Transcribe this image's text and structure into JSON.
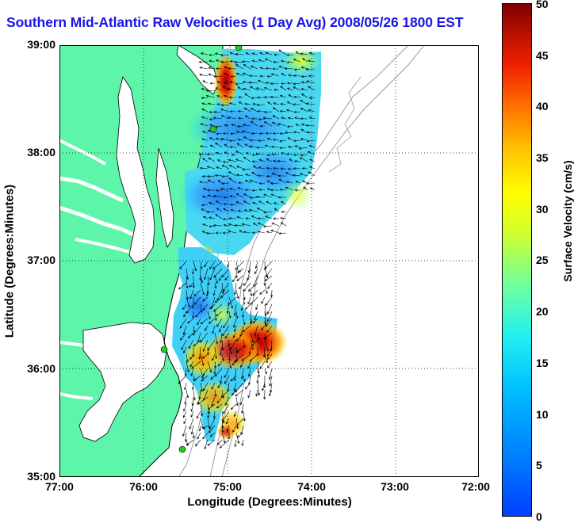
{
  "figure": {
    "title": "Southern Mid-Atlantic Raw Velocities (1 Day Avg) 2008/05/26 1800 EST",
    "xlabel": "Longitude (Degrees:Minutes)",
    "ylabel": "Latitude (Degrees:Minutes)",
    "x_ticks": [
      "77:00",
      "76:00",
      "75:00",
      "74:00",
      "73:00",
      "72:00"
    ],
    "y_ticks": [
      "39:00",
      "38:00",
      "37:00",
      "36:00",
      "35:00"
    ],
    "colorbar": {
      "label": "Surface Velocity (cm/s)",
      "ticks": [
        "50",
        "45",
        "40",
        "35",
        "30",
        "25",
        "20",
        "15",
        "10",
        "5",
        "0"
      ],
      "range": [
        0,
        50
      ]
    },
    "colors": {
      "title": "#1a14e6",
      "land": "#5cf5aa",
      "water": "#ffffff",
      "coastline": "#000000",
      "bathymetry": "#9a9a9a",
      "grid": "#000000",
      "station": "#22cc22"
    }
  }
}
